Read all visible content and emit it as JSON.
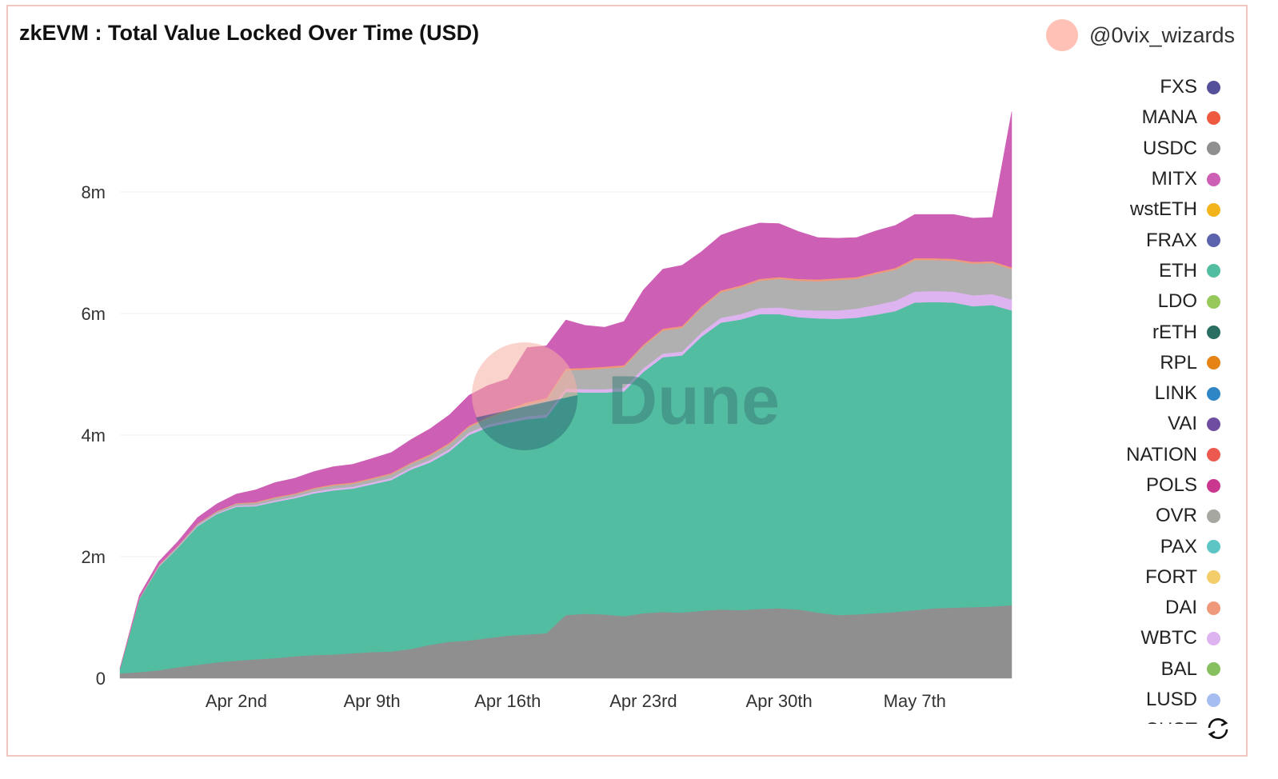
{
  "title": "zkEVM : Total Value Locked Over Time (USD)",
  "author": "@0vix_wizards",
  "watermark": "Dune",
  "colors": {
    "USDC": "#8f8f8f",
    "ETH": "#52bda0",
    "WBTC": "#ddb4f0",
    "OVR": "#b0b0b0",
    "DAI": "#f0997a",
    "MITX": "#cd5fb4",
    "avatar": "#ffc0b5"
  },
  "legend": [
    {
      "label": "FXS",
      "color": "#55509a"
    },
    {
      "label": "MANA",
      "color": "#ed5a3f"
    },
    {
      "label": "USDC",
      "color": "#8f8f8f"
    },
    {
      "label": "MITX",
      "color": "#cd5fb4"
    },
    {
      "label": "wstETH",
      "color": "#f2b31b"
    },
    {
      "label": "FRAX",
      "color": "#5c63ad"
    },
    {
      "label": "ETH",
      "color": "#52bda0"
    },
    {
      "label": "LDO",
      "color": "#96c95a"
    },
    {
      "label": "rETH",
      "color": "#2a6e62"
    },
    {
      "label": "RPL",
      "color": "#e58414"
    },
    {
      "label": "LINK",
      "color": "#2f86c6"
    },
    {
      "label": "VAI",
      "color": "#6f4ea1"
    },
    {
      "label": "NATION",
      "color": "#ec5a4f"
    },
    {
      "label": "POLS",
      "color": "#c9388e"
    },
    {
      "label": "OVR",
      "color": "#a7a7a1"
    },
    {
      "label": "PAX",
      "color": "#5dc6c5"
    },
    {
      "label": "FORT",
      "color": "#f2cd6a"
    },
    {
      "label": "DAI",
      "color": "#f0997a"
    },
    {
      "label": "WBTC",
      "color": "#ddb4f0"
    },
    {
      "label": "BAL",
      "color": "#87c05e"
    },
    {
      "label": "LUSD",
      "color": "#a5bdf0"
    },
    {
      "label": "CHST",
      "color": "#f08fb4"
    }
  ],
  "chart_data": {
    "type": "area",
    "stacked": true,
    "x_range": [
      "2023-03-27",
      "2023-05-12"
    ],
    "x_ticks": [
      {
        "date": "2023-04-02",
        "label": "Apr 2nd"
      },
      {
        "date": "2023-04-09",
        "label": "Apr 9th"
      },
      {
        "date": "2023-04-16",
        "label": "Apr 16th"
      },
      {
        "date": "2023-04-23",
        "label": "Apr 23rd"
      },
      {
        "date": "2023-04-30",
        "label": "Apr 30th"
      },
      {
        "date": "2023-05-07",
        "label": "May 7th"
      }
    ],
    "y_ticks": [
      {
        "value": 0,
        "label": "0"
      },
      {
        "value": 2000000,
        "label": "2m"
      },
      {
        "value": 4000000,
        "label": "4m"
      },
      {
        "value": 6000000,
        "label": "6m"
      },
      {
        "value": 8000000,
        "label": "8m"
      }
    ],
    "ylim": [
      0,
      10000000
    ],
    "grid": true,
    "legend_position": "right",
    "x": [
      "2023-03-27",
      "2023-03-28",
      "2023-03-29",
      "2023-03-30",
      "2023-03-31",
      "2023-04-01",
      "2023-04-02",
      "2023-04-03",
      "2023-04-04",
      "2023-04-05",
      "2023-04-06",
      "2023-04-07",
      "2023-04-08",
      "2023-04-09",
      "2023-04-10",
      "2023-04-11",
      "2023-04-12",
      "2023-04-13",
      "2023-04-14",
      "2023-04-15",
      "2023-04-16",
      "2023-04-17",
      "2023-04-18",
      "2023-04-19",
      "2023-04-20",
      "2023-04-21",
      "2023-04-22",
      "2023-04-23",
      "2023-04-24",
      "2023-04-25",
      "2023-04-26",
      "2023-04-27",
      "2023-04-28",
      "2023-04-29",
      "2023-04-30",
      "2023-05-01",
      "2023-05-02",
      "2023-05-03",
      "2023-05-04",
      "2023-05-05",
      "2023-05-06",
      "2023-05-07",
      "2023-05-08",
      "2023-05-09",
      "2023-05-10",
      "2023-05-11",
      "2023-05-12"
    ],
    "series": [
      {
        "name": "USDC",
        "values": [
          80000,
          100000,
          130000,
          180000,
          220000,
          260000,
          290000,
          310000,
          330000,
          360000,
          380000,
          390000,
          410000,
          430000,
          440000,
          480000,
          550000,
          600000,
          620000,
          660000,
          700000,
          720000,
          740000,
          1040000,
          1060000,
          1050000,
          1020000,
          1070000,
          1090000,
          1080000,
          1110000,
          1130000,
          1120000,
          1140000,
          1150000,
          1130000,
          1080000,
          1040000,
          1050000,
          1070000,
          1090000,
          1120000,
          1150000,
          1160000,
          1170000,
          1180000,
          1200000
        ]
      },
      {
        "name": "ETH",
        "values": [
          80000,
          1200000,
          1700000,
          1970000,
          2280000,
          2440000,
          2530000,
          2520000,
          2570000,
          2600000,
          2660000,
          2700000,
          2710000,
          2760000,
          2820000,
          2950000,
          3000000,
          3130000,
          3380000,
          3470000,
          3500000,
          3540000,
          3550000,
          3670000,
          3640000,
          3650000,
          3700000,
          3970000,
          4190000,
          4230000,
          4510000,
          4720000,
          4780000,
          4850000,
          4840000,
          4810000,
          4840000,
          4870000,
          4880000,
          4910000,
          4950000,
          5060000,
          5040000,
          5020000,
          4950000,
          4960000,
          4850000
        ]
      },
      {
        "name": "WBTC",
        "values": [
          0,
          5000,
          10000,
          10000,
          15000,
          15000,
          20000,
          20000,
          25000,
          25000,
          30000,
          30000,
          30000,
          30000,
          35000,
          35000,
          40000,
          40000,
          40000,
          45000,
          45000,
          50000,
          50000,
          55000,
          55000,
          55000,
          60000,
          60000,
          60000,
          65000,
          70000,
          80000,
          90000,
          100000,
          110000,
          120000,
          130000,
          140000,
          150000,
          160000,
          170000,
          180000,
          180000,
          180000,
          180000,
          180000,
          180000
        ]
      },
      {
        "name": "OVR",
        "values": [
          0,
          5000,
          10000,
          15000,
          20000,
          25000,
          30000,
          35000,
          40000,
          40000,
          45000,
          50000,
          50000,
          55000,
          60000,
          60000,
          70000,
          80000,
          90000,
          100000,
          150000,
          200000,
          240000,
          300000,
          320000,
          340000,
          340000,
          360000,
          380000,
          390000,
          400000,
          420000,
          440000,
          450000,
          470000,
          480000,
          480000,
          500000,
          490000,
          510000,
          510000,
          520000,
          510000,
          510000,
          520000,
          510000,
          500000
        ]
      },
      {
        "name": "DAI",
        "values": [
          0,
          5000,
          10000,
          10000,
          10000,
          10000,
          10000,
          15000,
          15000,
          15000,
          15000,
          20000,
          20000,
          20000,
          20000,
          20000,
          25000,
          25000,
          25000,
          25000,
          30000,
          30000,
          30000,
          30000,
          30000,
          30000,
          30000,
          30000,
          30000,
          30000,
          30000,
          30000,
          30000,
          30000,
          30000,
          30000,
          30000,
          30000,
          30000,
          30000,
          30000,
          30000,
          30000,
          30000,
          30000,
          30000,
          30000
        ]
      },
      {
        "name": "MITX",
        "values": [
          0,
          50000,
          60000,
          70000,
          100000,
          120000,
          150000,
          200000,
          240000,
          250000,
          270000,
          290000,
          300000,
          320000,
          340000,
          380000,
          420000,
          460000,
          500000,
          520000,
          500000,
          900000,
          860000,
          800000,
          700000,
          650000,
          720000,
          900000,
          980000,
          1000000,
          900000,
          910000,
          940000,
          920000,
          880000,
          780000,
          690000,
          660000,
          650000,
          680000,
          700000,
          720000,
          720000,
          730000,
          720000,
          720000,
          2560000
        ]
      }
    ]
  }
}
